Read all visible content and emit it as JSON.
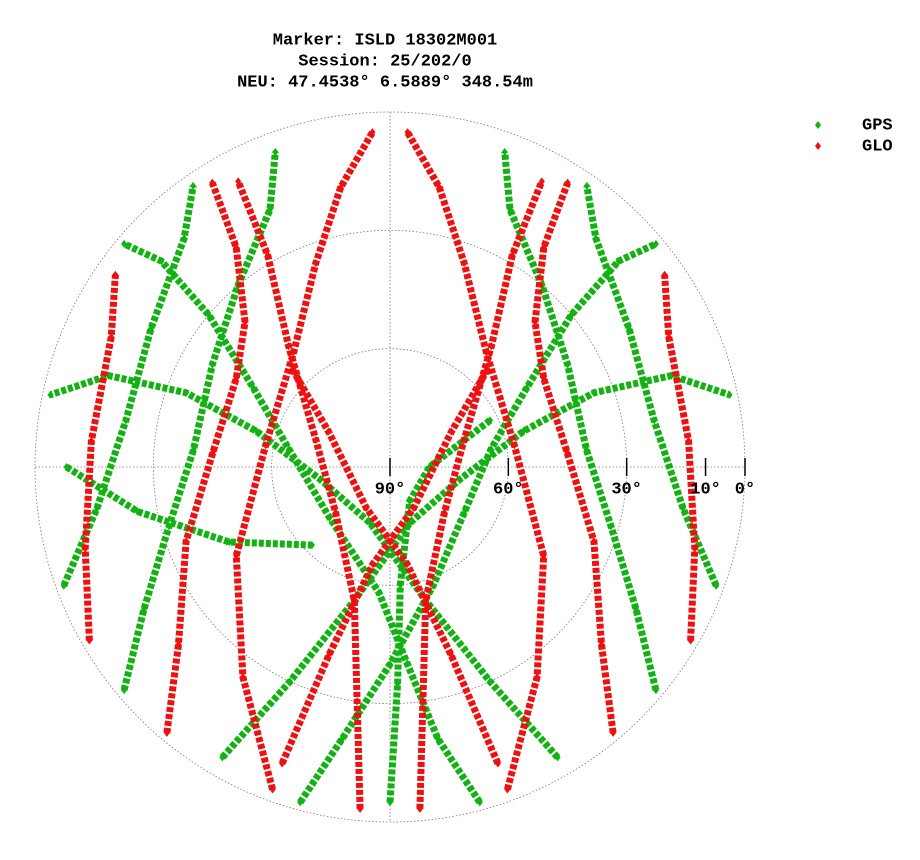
{
  "chart_data": {
    "type": "skyplot",
    "title": [
      "Marker: ISLD 18302M001",
      "Session: 25/202/0",
      "NEU: 47.4538° 6.5889° 348.54m"
    ],
    "rlim": [
      90,
      0
    ],
    "rticks": [
      {
        "value": 90,
        "label": "90°"
      },
      {
        "value": 60,
        "label": "60°"
      },
      {
        "value": 30,
        "label": "30°"
      },
      {
        "value": 10,
        "label": "10°"
      },
      {
        "value": 0,
        "label": "0°"
      }
    ],
    "grid_circles": [
      0,
      30,
      60
    ],
    "legend": "top-right",
    "series": [
      {
        "name": "GPS",
        "color": "#11b211",
        "azimuth": [
          195,
          190,
          180,
          160,
          120,
          80,
          60,
          50,
          48,
          50,
          null,
          165,
          170,
          175,
          185,
          230,
          280,
          300,
          310,
          312,
          310,
          null,
          230,
          240,
          255,
          275,
          300,
          320,
          335,
          340,
          null,
          130,
          120,
          105,
          85,
          60,
          40,
          25,
          20,
          null,
          210,
          205,
          195,
          160,
          100,
          75,
          70,
          72,
          78,
          null,
          150,
          155,
          165,
          200,
          260,
          285,
          290,
          288,
          282,
          null,
          250,
          262,
          280,
          300,
          318,
          325,
          null,
          110,
          98,
          80,
          60,
          42,
          35,
          null,
          180,
          178,
          175,
          150,
          90,
          65,
          null,
          270,
          260,
          245,
          225
        ],
        "elevation": [
          2,
          20,
          40,
          58,
          68,
          64,
          50,
          30,
          12,
          2,
          null,
          2,
          20,
          40,
          58,
          70,
          64,
          50,
          30,
          12,
          2,
          null,
          2,
          18,
          32,
          40,
          38,
          30,
          18,
          5,
          null,
          2,
          18,
          32,
          40,
          38,
          30,
          18,
          5,
          null,
          5,
          30,
          55,
          75,
          72,
          55,
          35,
          15,
          2,
          null,
          5,
          30,
          55,
          75,
          72,
          55,
          35,
          15,
          2,
          null,
          2,
          15,
          22,
          20,
          12,
          3,
          null,
          2,
          15,
          22,
          20,
          12,
          3,
          null,
          5,
          35,
          60,
          80,
          80,
          62,
          null,
          8,
          25,
          45,
          62
        ]
      },
      {
        "name": "GLO",
        "color": "#ee1111",
        "azimuth": [
          200,
          215,
          240,
          280,
          320,
          340,
          350,
          357,
          null,
          160,
          145,
          120,
          80,
          40,
          20,
          10,
          3,
          null,
          175,
          172,
          165,
          130,
          70,
          40,
          30,
          28,
          null,
          185,
          188,
          195,
          230,
          290,
          320,
          330,
          332,
          null,
          220,
          230,
          250,
          275,
          300,
          315,
          325,
          328,
          null,
          140,
          130,
          110,
          85,
          60,
          45,
          35,
          32,
          null,
          200,
          198,
          190,
          150,
          60,
          45,
          null,
          160,
          162,
          170,
          210,
          300,
          315,
          null,
          240,
          255,
          275,
          295,
          305,
          null,
          120,
          105,
          85,
          65,
          55
        ],
        "elevation": [
          3,
          25,
          45,
          58,
          52,
          35,
          18,
          5,
          null,
          3,
          25,
          45,
          58,
          52,
          35,
          18,
          5,
          null,
          3,
          30,
          55,
          72,
          70,
          50,
          28,
          8,
          null,
          3,
          30,
          55,
          72,
          70,
          50,
          28,
          8,
          null,
          2,
          20,
          35,
          45,
          45,
          38,
          22,
          5,
          null,
          2,
          20,
          35,
          45,
          45,
          38,
          22,
          5,
          null,
          10,
          40,
          65,
          78,
          72,
          55,
          null,
          10,
          40,
          65,
          78,
          72,
          55,
          null,
          2,
          10,
          14,
          12,
          5,
          null,
          2,
          10,
          14,
          12,
          5
        ]
      }
    ]
  }
}
